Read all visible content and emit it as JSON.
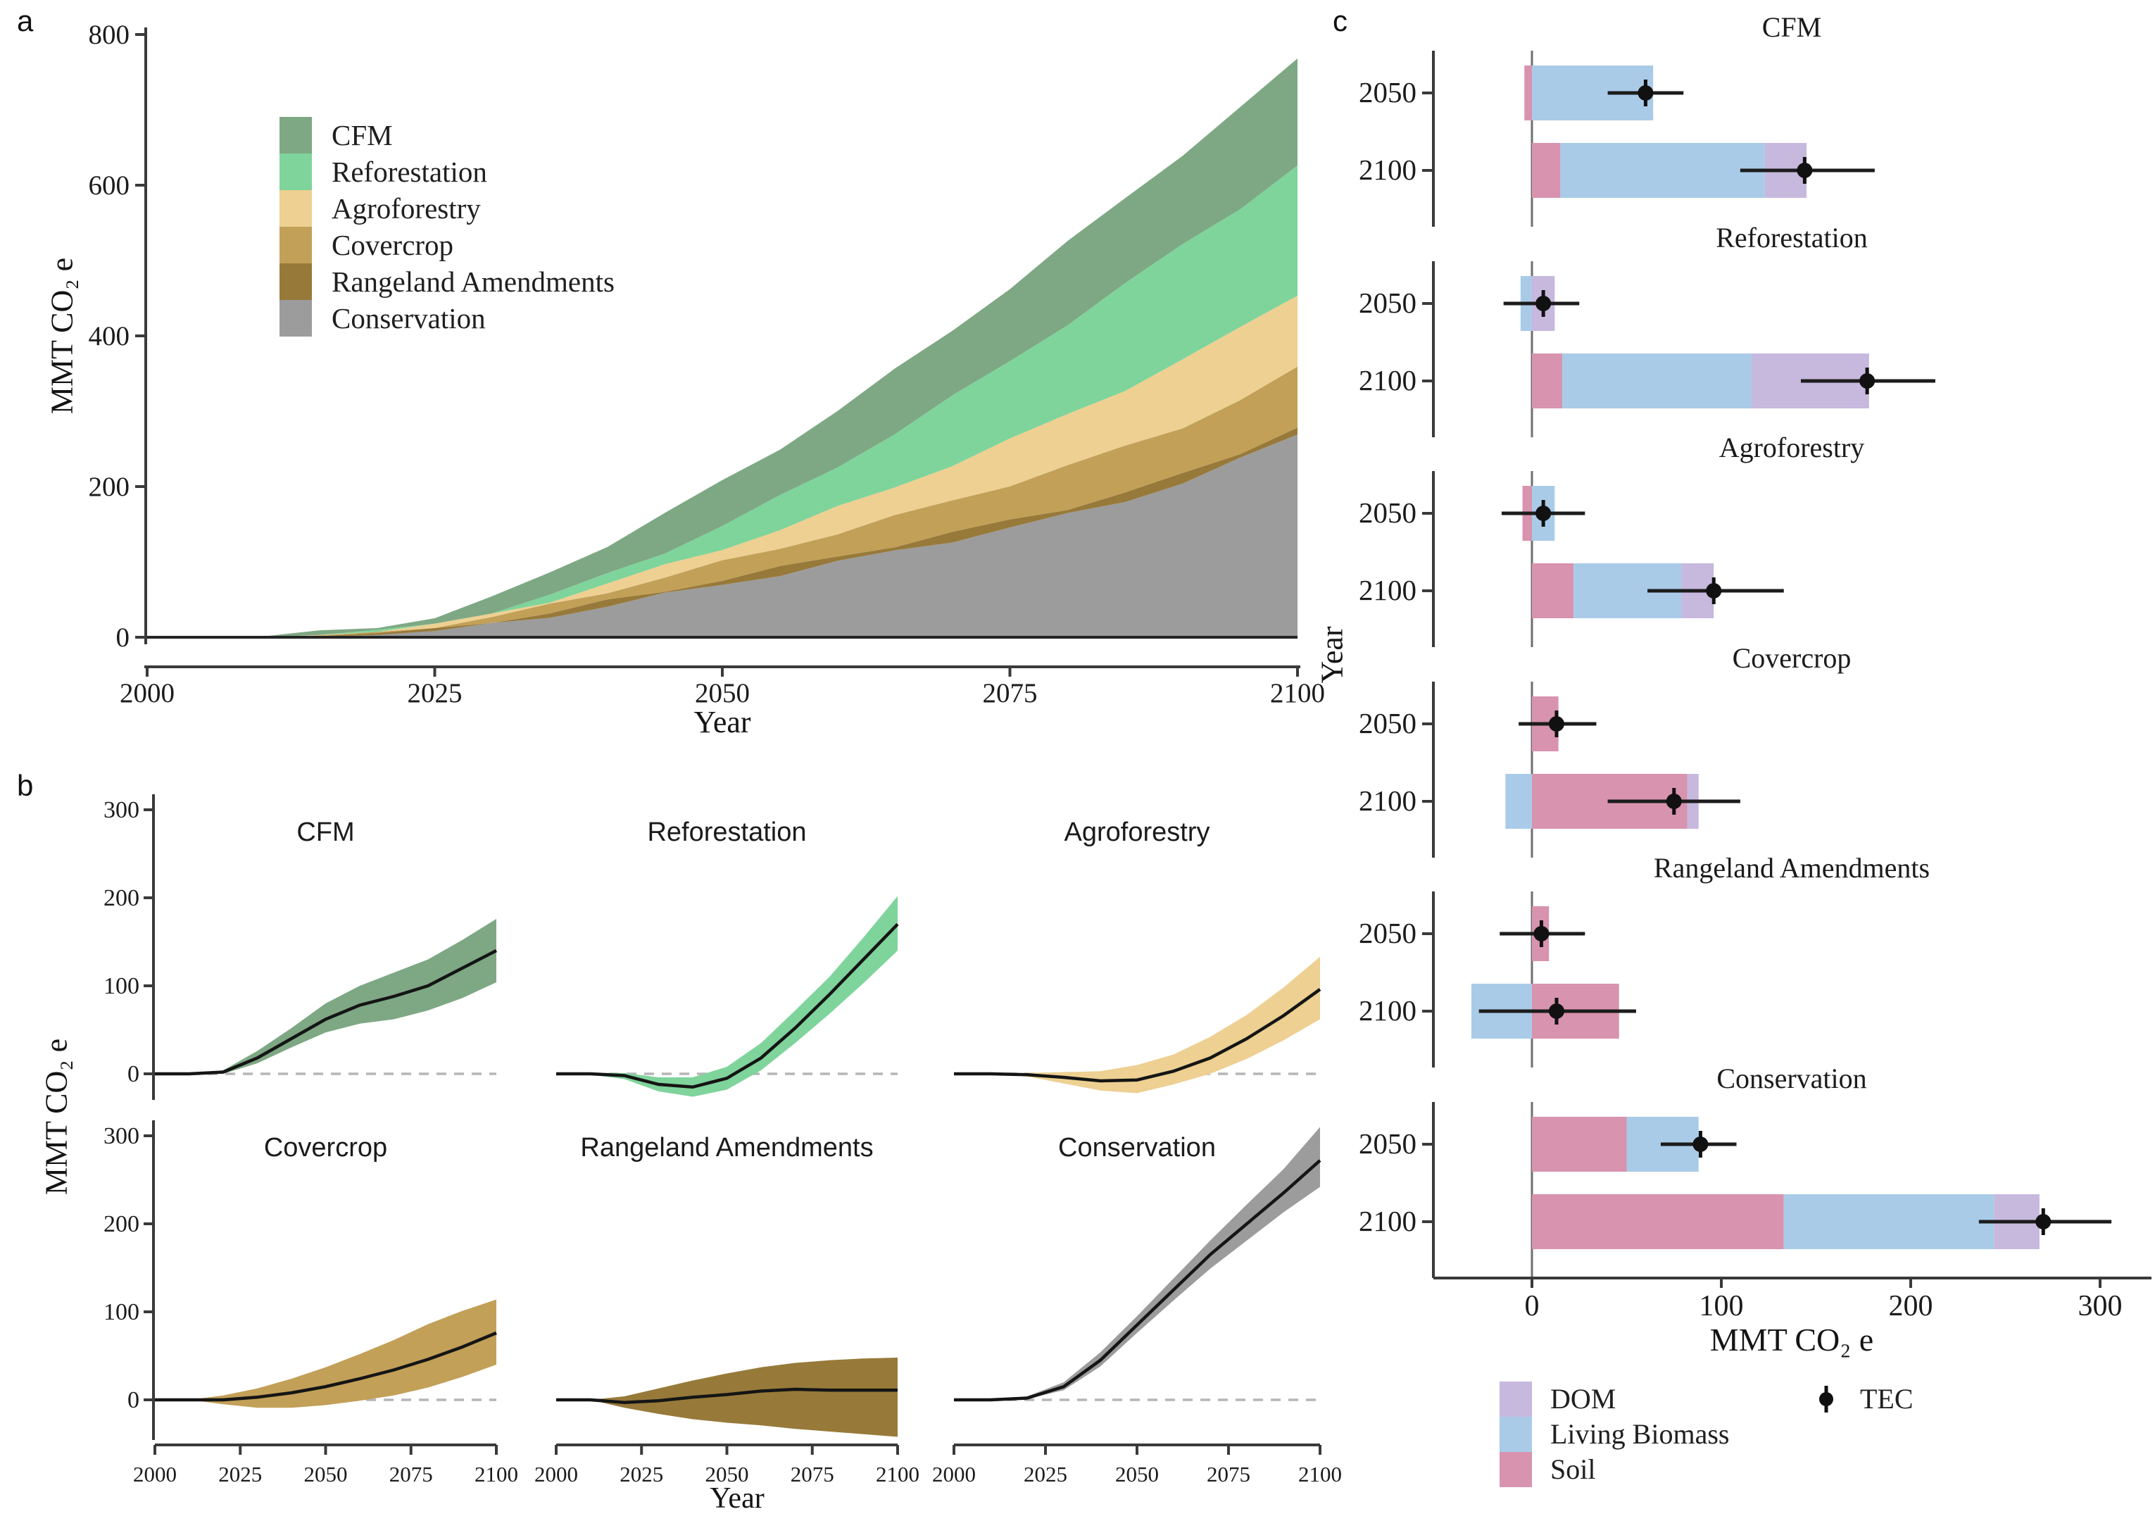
{
  "figure": {
    "panel_labels": {
      "a": "a",
      "b": "b",
      "c": "c"
    },
    "axis_titles": {
      "year": "Year",
      "mmt": "MMT CO₂ e"
    },
    "colors": {
      "cfm": "#7EA884",
      "reforestation": "#7FD49B",
      "agroforestry": "#EDD092",
      "covercrop": "#C2A058",
      "rangeland": "#977A3A",
      "conservation": "#9C9C9C",
      "dom": "#C7B8DE",
      "biomass": "#A9CBE8",
      "soil": "#D893AE",
      "line": "#151515",
      "axis": "#3a3a3a",
      "dash": "#b5b5b5",
      "error": "#1c1c1c"
    }
  },
  "chart_data": [
    {
      "panel": "a",
      "type": "area",
      "title": "",
      "xlabel": "Year",
      "ylabel": "MMT CO₂ e",
      "ylim": [
        0,
        800
      ],
      "yticks": [
        0,
        200,
        400,
        600,
        800
      ],
      "xticks": [
        2000,
        2025,
        2050,
        2075,
        2100
      ],
      "grid": false,
      "legend_position": "upper-left-inside",
      "stack_order": [
        "conservation",
        "rangeland",
        "covercrop",
        "agroforestry",
        "reforestation",
        "cfm"
      ],
      "x": [
        2000,
        2005,
        2010,
        2015,
        2020,
        2025,
        2030,
        2035,
        2040,
        2045,
        2050,
        2055,
        2060,
        2065,
        2070,
        2075,
        2080,
        2085,
        2090,
        2095,
        2100
      ],
      "series": [
        {
          "name": "CFM",
          "key": "cfm",
          "values": [
            0,
            0,
            1,
            3,
            6,
            12,
            20,
            30,
            40,
            50,
            58,
            66,
            74,
            82,
            90,
            98,
            106,
            114,
            122,
            131,
            140
          ]
        },
        {
          "name": "Reforestation",
          "key": "reforestation",
          "values": [
            0,
            0,
            0,
            0,
            0,
            0,
            2,
            6,
            12,
            20,
            30,
            42,
            56,
            72,
            88,
            105,
            122,
            138,
            152,
            162,
            170
          ]
        },
        {
          "name": "Agroforestry",
          "key": "agroforestry",
          "values": [
            0,
            0,
            0,
            0.5,
            1,
            2,
            4,
            7,
            10,
            14,
            19,
            25,
            32,
            40,
            49,
            58,
            68,
            78,
            88,
            94,
            100
          ]
        },
        {
          "name": "Covercrop",
          "key": "covercrop",
          "values": [
            0,
            0,
            0,
            1,
            2,
            4,
            7,
            10,
            14,
            18,
            22,
            27,
            32,
            37,
            43,
            49,
            55,
            60,
            65,
            70,
            76
          ]
        },
        {
          "name": "Rangeland Amendments",
          "key": "rangeland",
          "values": [
            0,
            0,
            0,
            0.5,
            1,
            2,
            3,
            4,
            5,
            6,
            7,
            7.5,
            8,
            8.5,
            9,
            9.5,
            10,
            10,
            10,
            10,
            10
          ]
        },
        {
          "name": "Conservation",
          "key": "conservation",
          "values": [
            0,
            0,
            0,
            1,
            3,
            8,
            16,
            28,
            42,
            56,
            70,
            84,
            99,
            114,
            129,
            145,
            162,
            182,
            205,
            235,
            270
          ]
        }
      ],
      "legend": [
        {
          "label": "CFM",
          "key": "cfm"
        },
        {
          "label": "Reforestation",
          "key": "reforestation"
        },
        {
          "label": "Agroforestry",
          "key": "agroforestry"
        },
        {
          "label": "Covercrop",
          "key": "covercrop"
        },
        {
          "label": "Rangeland Amendments",
          "key": "rangeland"
        },
        {
          "label": "Conservation",
          "key": "conservation"
        }
      ]
    },
    {
      "panel": "b",
      "type": "line",
      "xlabel": "Year",
      "ylabel": "MMT CO₂ e",
      "yticks": [
        0,
        100,
        200,
        300
      ],
      "xticks": [
        2000,
        2025,
        2050,
        2075,
        2100
      ],
      "zero_line": "dashed",
      "x": [
        2000,
        2010,
        2020,
        2030,
        2040,
        2050,
        2060,
        2070,
        2080,
        2090,
        2100
      ],
      "subplots": [
        {
          "title": "CFM",
          "key": "cfm",
          "row": 0,
          "col": 0,
          "mean": [
            0,
            0,
            2,
            18,
            40,
            62,
            78,
            88,
            100,
            120,
            140
          ],
          "lower": [
            0,
            0,
            0,
            12,
            30,
            47,
            57,
            62,
            72,
            86,
            104
          ],
          "upper": [
            0,
            0,
            4,
            26,
            52,
            80,
            100,
            115,
            130,
            152,
            176
          ]
        },
        {
          "title": "Reforestation",
          "key": "reforestation",
          "row": 0,
          "col": 1,
          "mean": [
            0,
            0,
            -2,
            -12,
            -15,
            -5,
            18,
            52,
            90,
            130,
            170
          ],
          "lower": [
            0,
            -1,
            -6,
            -20,
            -26,
            -18,
            4,
            35,
            68,
            103,
            140
          ],
          "upper": [
            0,
            1,
            1,
            -4,
            -4,
            8,
            35,
            72,
            110,
            155,
            202
          ]
        },
        {
          "title": "Agroforestry",
          "key": "agroforestry",
          "row": 0,
          "col": 2,
          "mean": [
            0,
            0,
            -1,
            -4,
            -8,
            -7,
            3,
            18,
            40,
            66,
            96
          ],
          "lower": [
            0,
            0,
            -3,
            -11,
            -19,
            -22,
            -12,
            0,
            17,
            38,
            62
          ],
          "upper": [
            0,
            0,
            1,
            2,
            3,
            10,
            22,
            42,
            67,
            98,
            133
          ]
        },
        {
          "title": "Covercrop",
          "key": "covercrop",
          "row": 1,
          "col": 0,
          "mean": [
            0,
            0,
            0,
            3,
            8,
            15,
            24,
            34,
            46,
            60,
            76
          ],
          "lower": [
            0,
            0,
            -5,
            -9,
            -9,
            -6,
            -1,
            5,
            14,
            26,
            40
          ],
          "upper": [
            0,
            0,
            5,
            13,
            24,
            37,
            52,
            68,
            86,
            101,
            114
          ]
        },
        {
          "title": "Rangeland Amendments",
          "key": "rangeland",
          "row": 1,
          "col": 1,
          "mean": [
            0,
            0,
            -3,
            -1,
            3,
            6,
            10,
            12,
            11,
            11,
            11
          ],
          "lower": [
            0,
            0,
            -9,
            -16,
            -22,
            -26,
            -29,
            -33,
            -36,
            -39,
            -42
          ],
          "upper": [
            0,
            0,
            4,
            13,
            22,
            30,
            37,
            42,
            45,
            47,
            48
          ]
        },
        {
          "title": "Conservation",
          "key": "conservation",
          "row": 1,
          "col": 2,
          "mean": [
            0,
            0,
            2,
            15,
            45,
            85,
            125,
            165,
            200,
            235,
            272
          ],
          "lower": [
            0,
            0,
            1,
            11,
            38,
            76,
            113,
            149,
            181,
            213,
            242
          ],
          "upper": [
            0,
            0,
            4,
            20,
            54,
            95,
            138,
            181,
            222,
            262,
            310
          ]
        }
      ]
    },
    {
      "panel": "c",
      "type": "bar",
      "orientation": "horizontal",
      "xlabel": "MMT CO₂ e",
      "ylabel": "Year",
      "xticks": [
        0,
        100,
        200,
        300
      ],
      "row_labels": [
        "2050",
        "2100"
      ],
      "stack_legend": [
        {
          "label": "DOM",
          "key": "dom"
        },
        {
          "label": "Living Biomass",
          "key": "biomass"
        },
        {
          "label": "Soil",
          "key": "soil"
        }
      ],
      "point_legend": {
        "label": "TEC"
      },
      "groups": [
        {
          "title": "CFM",
          "key": "cfm",
          "rows": [
            {
              "year": "2050",
              "segments": [
                {
                  "key": "soil",
                  "from": -4,
                  "to": 0
                },
                {
                  "key": "biomass",
                  "from": 0,
                  "to": 64
                }
              ],
              "tec": 60,
              "ci": [
                40,
                80
              ]
            },
            {
              "year": "2100",
              "segments": [
                {
                  "key": "soil",
                  "from": 0,
                  "to": 15
                },
                {
                  "key": "biomass",
                  "from": 15,
                  "to": 123
                },
                {
                  "key": "dom",
                  "from": 123,
                  "to": 145
                }
              ],
              "tec": 144,
              "ci": [
                110,
                181
              ]
            }
          ]
        },
        {
          "title": "Reforestation",
          "key": "reforestation",
          "rows": [
            {
              "year": "2050",
              "segments": [
                {
                  "key": "biomass",
                  "from": -6,
                  "to": 0
                },
                {
                  "key": "dom",
                  "from": 0,
                  "to": 12
                }
              ],
              "tec": 6,
              "ci": [
                -15,
                25
              ]
            },
            {
              "year": "2100",
              "segments": [
                {
                  "key": "soil",
                  "from": 0,
                  "to": 16
                },
                {
                  "key": "biomass",
                  "from": 16,
                  "to": 116
                },
                {
                  "key": "dom",
                  "from": 116,
                  "to": 178
                }
              ],
              "tec": 177,
              "ci": [
                142,
                213
              ]
            }
          ]
        },
        {
          "title": "Agroforestry",
          "key": "agroforestry",
          "rows": [
            {
              "year": "2050",
              "segments": [
                {
                  "key": "soil",
                  "from": -5,
                  "to": 0
                },
                {
                  "key": "biomass",
                  "from": 0,
                  "to": 12
                }
              ],
              "tec": 6,
              "ci": [
                -16,
                28
              ]
            },
            {
              "year": "2100",
              "segments": [
                {
                  "key": "soil",
                  "from": 0,
                  "to": 22
                },
                {
                  "key": "biomass",
                  "from": 22,
                  "to": 79
                },
                {
                  "key": "dom",
                  "from": 79,
                  "to": 96
                }
              ],
              "tec": 96,
              "ci": [
                61,
                133
              ]
            }
          ]
        },
        {
          "title": "Covercrop",
          "key": "covercrop",
          "rows": [
            {
              "year": "2050",
              "segments": [
                {
                  "key": "soil",
                  "from": 0,
                  "to": 14
                }
              ],
              "tec": 13,
              "ci": [
                -7,
                34
              ]
            },
            {
              "year": "2100",
              "segments": [
                {
                  "key": "biomass",
                  "from": -14,
                  "to": 0
                },
                {
                  "key": "soil",
                  "from": 0,
                  "to": 82
                },
                {
                  "key": "dom",
                  "from": 82,
                  "to": 88
                }
              ],
              "tec": 75,
              "ci": [
                40,
                110
              ]
            }
          ]
        },
        {
          "title": "Rangeland Amendments",
          "key": "rangeland",
          "rows": [
            {
              "year": "2050",
              "segments": [
                {
                  "key": "soil",
                  "from": 0,
                  "to": 9
                }
              ],
              "tec": 5,
              "ci": [
                -17,
                28
              ]
            },
            {
              "year": "2100",
              "segments": [
                {
                  "key": "biomass",
                  "from": -32,
                  "to": 0
                },
                {
                  "key": "soil",
                  "from": 0,
                  "to": 46
                }
              ],
              "tec": 13,
              "ci": [
                -28,
                55
              ]
            }
          ]
        },
        {
          "title": "Conservation",
          "key": "conservation",
          "rows": [
            {
              "year": "2050",
              "segments": [
                {
                  "key": "soil",
                  "from": 0,
                  "to": 50
                },
                {
                  "key": "biomass",
                  "from": 50,
                  "to": 88
                }
              ],
              "tec": 89,
              "ci": [
                68,
                108
              ]
            },
            {
              "year": "2100",
              "segments": [
                {
                  "key": "soil",
                  "from": 0,
                  "to": 133
                },
                {
                  "key": "biomass",
                  "from": 133,
                  "to": 244
                },
                {
                  "key": "dom",
                  "from": 244,
                  "to": 268
                }
              ],
              "tec": 270,
              "ci": [
                236,
                306
              ]
            }
          ]
        }
      ]
    }
  ]
}
